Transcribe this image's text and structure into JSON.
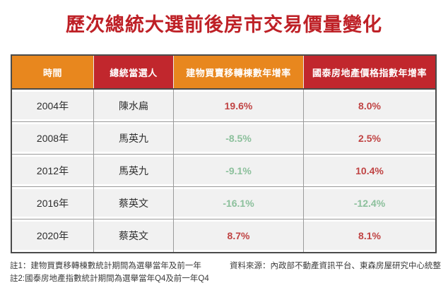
{
  "title": "歷次總統大選前後房市交易價量變化",
  "table": {
    "columns": [
      {
        "label": "時間",
        "color": "#e8871e"
      },
      {
        "label": "總統當選人",
        "color": "#c1272d"
      },
      {
        "label": "建物買賣移轉棟數年增率",
        "color": "#e8871e"
      },
      {
        "label": "國泰房地產價格指數年增率",
        "color": "#c1272d"
      }
    ],
    "rows": [
      {
        "year": "2004年",
        "president": "陳水扁",
        "transfer_yoy": "19.6%",
        "price_index_yoy": "8.0%"
      },
      {
        "year": "2008年",
        "president": "馬英九",
        "transfer_yoy": "-8.5%",
        "price_index_yoy": "2.5%"
      },
      {
        "year": "2012年",
        "president": "馬英九",
        "transfer_yoy": "-9.1%",
        "price_index_yoy": "10.4%"
      },
      {
        "year": "2016年",
        "president": "蔡英文",
        "transfer_yoy": "-16.1%",
        "price_index_yoy": "-12.4%"
      },
      {
        "year": "2020年",
        "president": "蔡英文",
        "transfer_yoy": "8.7%",
        "price_index_yoy": "8.1%"
      }
    ]
  },
  "footnotes": {
    "note1": "註1：建物買賣移轉棟數統計期間為選舉當年及前一年",
    "note2": "註2:國泰房地產指數統計期間為選舉當年Q4及前一年Q4",
    "source": "資料來源：內政部不動產資訊平台、東森房屋研究中心統整"
  },
  "colors": {
    "title_red": "#be2026",
    "header_orange": "#e8871e",
    "header_red": "#c1272d",
    "positive_value": "#c04444",
    "negative_value": "#8cc09c",
    "cell_background": "#f1f1f1",
    "grid_line": "#9a9a9a"
  },
  "chart_data": {
    "type": "table",
    "title": "歷次總統大選前後房市交易價量變化",
    "columns": [
      "時間",
      "總統當選人",
      "建物買賣移轉棟數年增率",
      "國泰房地產價格指數年增率"
    ],
    "rows": [
      [
        "2004年",
        "陳水扁",
        "19.6%",
        "8.0%"
      ],
      [
        "2008年",
        "馬英九",
        "-8.5%",
        "2.5%"
      ],
      [
        "2012年",
        "馬英九",
        "-9.1%",
        "10.4%"
      ],
      [
        "2016年",
        "蔡英文",
        "-16.1%",
        "-12.4%"
      ],
      [
        "2020年",
        "蔡英文",
        "8.7%",
        "8.1%"
      ]
    ],
    "value_semantics": "red text = positive growth, green text = negative growth"
  }
}
